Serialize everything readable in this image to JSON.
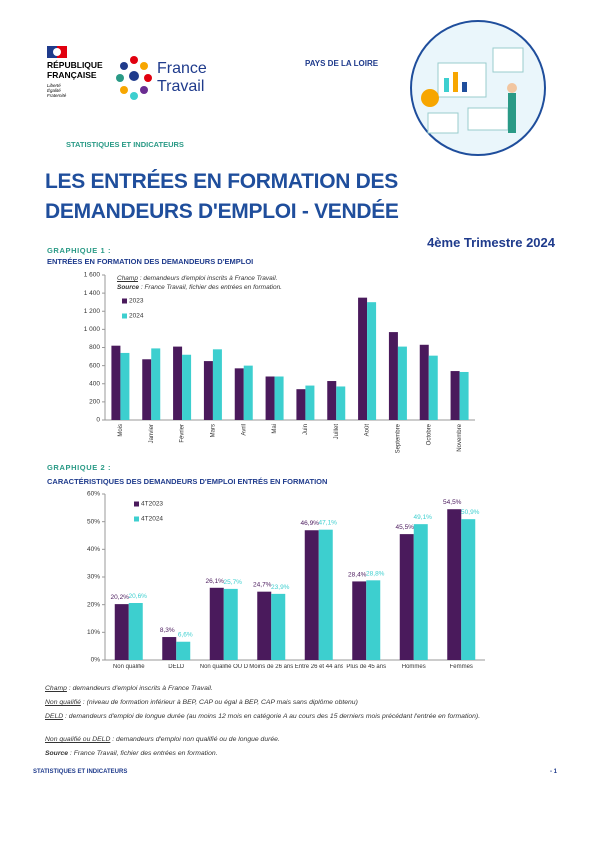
{
  "header": {
    "republique": [
      "RÉPUBLIQUE",
      "FRANÇAISE"
    ],
    "devise": [
      "Liberté",
      "Égalité",
      "Fraternité"
    ],
    "brand": [
      "France",
      "Travail"
    ],
    "region": "PAYS DE LA LOIRE",
    "section": "STATISTIQUES ET INDICATEURS"
  },
  "title": {
    "lines": [
      "LES ENTRÉES EN FORMATION DES",
      "DEMANDEURS D'EMPLOI - VENDÉE"
    ],
    "period": "4ème Trimestre 2024"
  },
  "chart_data": [
    {
      "type": "bar",
      "label": "GRAPHIQUE 1 :",
      "title": "ENTRÉES EN FORMATION DES DEMANDEURS D'EMPLOI",
      "notes": [
        {
          "label": "Champ",
          "text": " : demandeurs d'emploi inscrits à France Travail."
        },
        {
          "label": "Source",
          "text": " : France Travail, fichier des entrées en formation."
        }
      ],
      "categories": [
        "Mois",
        "Janvier",
        "Février",
        "Mars",
        "Avril",
        "Mai",
        "Juin",
        "Juillet",
        "Août",
        "Septembre",
        "Octobre",
        "Novembre"
      ],
      "series": [
        {
          "name": "2023",
          "color": "#4a1a5c",
          "values": [
            820,
            670,
            810,
            650,
            570,
            480,
            340,
            430,
            1350,
            970,
            830,
            540
          ]
        },
        {
          "name": "2024",
          "color": "#3dcfcf",
          "values": [
            740,
            790,
            720,
            780,
            600,
            480,
            380,
            370,
            1300,
            810,
            710,
            530
          ]
        }
      ],
      "ylim": [
        0,
        1600
      ],
      "yticks": [
        0,
        200,
        400,
        600,
        800,
        {
          "value": 1000,
          "label": "1 000"
        },
        {
          "value": 1200,
          "label": "1 200"
        },
        {
          "value": 1400,
          "label": "1 400"
        },
        {
          "value": 1600,
          "label": "1 600"
        }
      ],
      "grid": false
    },
    {
      "type": "bar",
      "label": "GRAPHIQUE 2 :",
      "title": "CARACTÉRISTIQUES DES DEMANDEURS D'EMPLOI ENTRÉS EN FORMATION",
      "categories": [
        "Non qualifié",
        "DELD",
        "Non qualifié OU DELD",
        "Moins de 26 ans",
        "Entre 26 et 44 ans",
        "Plus de 45 ans",
        "Hommes",
        "Femmes"
      ],
      "series": [
        {
          "name": "4T2023",
          "color": "#4a1a5c",
          "values": [
            20.2,
            8.3,
            26.1,
            24.7,
            46.9,
            28.4,
            45.5,
            54.5
          ],
          "value_labels": [
            "20,2%",
            "8,3%",
            "26,1%",
            "24,7%",
            "46,9%",
            "28,4%",
            "45,5%",
            "54,5%"
          ]
        },
        {
          "name": "4T2024",
          "color": "#3dcfcf",
          "values": [
            20.6,
            6.6,
            25.7,
            23.9,
            47.1,
            28.8,
            49.1,
            50.9
          ],
          "value_labels": [
            "20,6%",
            "6,6%",
            "25,7%",
            "23,9%",
            "47,1%",
            "28,8%",
            "49,1%",
            "50,9%"
          ]
        }
      ],
      "ylim": [
        0,
        60
      ],
      "yticks": [
        {
          "value": 0,
          "label": "0%"
        },
        {
          "value": 10,
          "label": "10%"
        },
        {
          "value": 20,
          "label": "20%"
        },
        {
          "value": 30,
          "label": "30%"
        },
        {
          "value": 40,
          "label": "40%"
        },
        {
          "value": 50,
          "label": "50%"
        },
        {
          "value": 60,
          "label": "60%"
        }
      ],
      "grid": false
    }
  ],
  "footnotes": [
    {
      "label": "Champ",
      "text": " : demandeurs d'emploi inscrits à France Travail."
    },
    {
      "label": "Non qualifié",
      "text": " : (niveau de formation inférieur à BEP, CAP ou égal à BEP, CAP mais sans diplôme obtenu)"
    },
    {
      "label": "DELD",
      "text": " : demandeurs d'emploi de longue durée (au moins 12 mois en catégorie A au cours des 15 derniers mois précédant l'entrée en formation)."
    },
    {
      "label": "Non qualifié ou DELD",
      "text": " : demandeurs d'emploi non qualifié ou de longue durée."
    },
    {
      "label": "Source",
      "text": " : France Travail, fichier des entrées en formation."
    }
  ],
  "footer": {
    "left": "STATISTIQUES ET INDICATEURS",
    "page": "- 1"
  }
}
